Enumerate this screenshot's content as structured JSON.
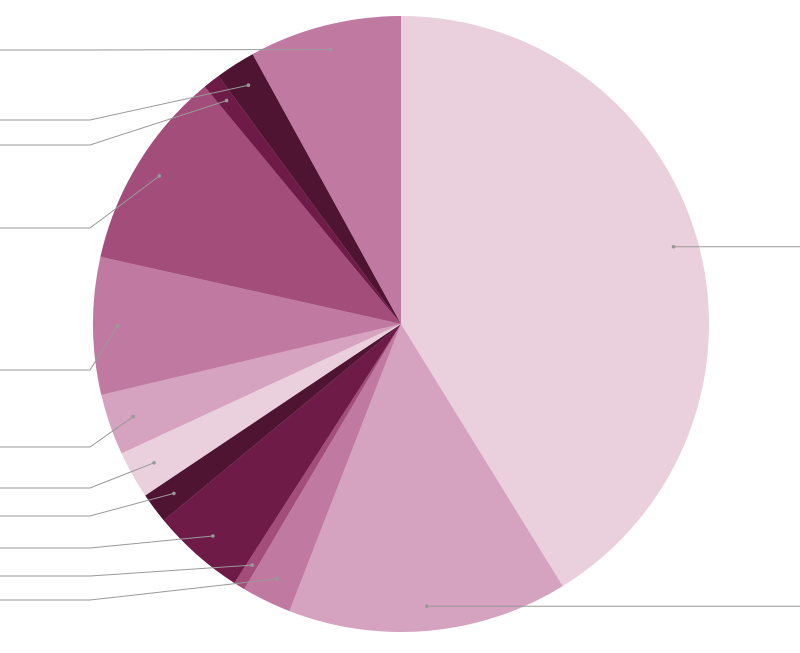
{
  "chart_data": {
    "type": "pie",
    "start_angle_deg": 0,
    "direction": "clockwise",
    "slices": [
      {
        "value": 41.2,
        "color": "#e9d0dc"
      },
      {
        "value": 14.7,
        "color": "#d5a2bf"
      },
      {
        "value": 2.6,
        "color": "#c07aa2"
      },
      {
        "value": 0.6,
        "color": "#a34d7b"
      },
      {
        "value": 4.9,
        "color": "#6f1b48"
      },
      {
        "value": 1.6,
        "color": "#4e1431"
      },
      {
        "value": 2.5,
        "color": "#e9d0dc"
      },
      {
        "value": 3.2,
        "color": "#d5a2bf"
      },
      {
        "value": 7.2,
        "color": "#c07aa2"
      },
      {
        "value": 10.5,
        "color": "#a34d7b"
      },
      {
        "value": 0.9,
        "color": "#6f1b48"
      },
      {
        "value": 2.1,
        "color": "#4e1431"
      },
      {
        "value": 8.0,
        "color": "#c07aa2"
      }
    ],
    "leader_line_color": "#999999"
  }
}
